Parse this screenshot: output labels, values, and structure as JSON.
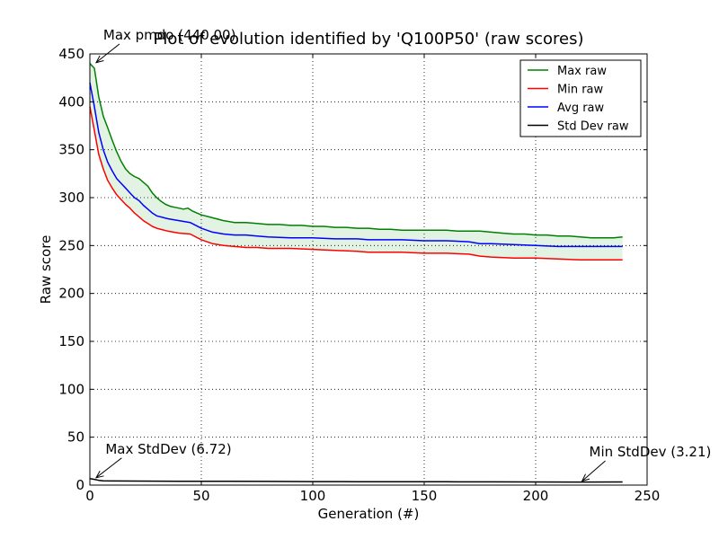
{
  "chart_data": {
    "type": "line",
    "title": "Plot of evolution identified by 'Q100P50' (raw scores)",
    "xlabel": "Generation (#)",
    "ylabel": "Raw score",
    "xlim": [
      0,
      250
    ],
    "ylim": [
      0,
      450
    ],
    "xticks": [
      0,
      50,
      100,
      150,
      200,
      250
    ],
    "yticks": [
      0,
      50,
      100,
      150,
      200,
      250,
      300,
      350,
      400,
      450
    ],
    "grid": true,
    "legend_position": "top-right",
    "fill_between": {
      "upper": "Max raw",
      "lower": "Min raw",
      "color": "#e3f3e3"
    },
    "series": [
      {
        "name": "Max raw",
        "color": "#008000",
        "x": [
          0,
          2,
          4,
          6,
          8,
          10,
          12,
          14,
          16,
          18,
          20,
          22,
          24,
          26,
          28,
          30,
          32,
          34,
          36,
          38,
          40,
          42,
          44,
          46,
          48,
          50,
          55,
          60,
          65,
          70,
          75,
          80,
          85,
          90,
          95,
          100,
          105,
          110,
          115,
          120,
          125,
          130,
          135,
          140,
          145,
          150,
          155,
          160,
          165,
          170,
          175,
          180,
          185,
          190,
          195,
          200,
          205,
          210,
          215,
          220,
          225,
          230,
          235,
          239
        ],
        "values": [
          440,
          435,
          405,
          385,
          373,
          360,
          348,
          338,
          330,
          325,
          322,
          320,
          316,
          312,
          305,
          300,
          296,
          293,
          291,
          290,
          289,
          288,
          289,
          286,
          284,
          282,
          279,
          276,
          274,
          274,
          273,
          272,
          272,
          271,
          271,
          270,
          270,
          269,
          269,
          268,
          268,
          267,
          267,
          266,
          266,
          266,
          266,
          266,
          265,
          265,
          265,
          264,
          263,
          262,
          262,
          261,
          261,
          260,
          260,
          259,
          258,
          258,
          258,
          259
        ]
      },
      {
        "name": "Min raw",
        "color": "#ff0000",
        "x": [
          0,
          2,
          4,
          6,
          8,
          10,
          12,
          14,
          16,
          18,
          20,
          22,
          24,
          26,
          28,
          30,
          35,
          40,
          45,
          50,
          55,
          60,
          65,
          70,
          75,
          80,
          90,
          100,
          110,
          120,
          125,
          130,
          140,
          150,
          160,
          170,
          175,
          180,
          190,
          200,
          210,
          220,
          230,
          239
        ],
        "values": [
          395,
          370,
          345,
          330,
          318,
          310,
          303,
          298,
          293,
          289,
          284,
          280,
          276,
          273,
          270,
          268,
          265,
          263,
          262,
          256,
          252,
          250,
          249,
          248,
          248,
          247,
          247,
          246,
          245,
          244,
          243,
          243,
          243,
          242,
          242,
          241,
          239,
          238,
          237,
          237,
          236,
          235,
          235,
          235
        ]
      },
      {
        "name": "Avg raw",
        "color": "#0000ff",
        "x": [
          0,
          2,
          4,
          6,
          8,
          10,
          12,
          14,
          16,
          18,
          20,
          22,
          24,
          26,
          28,
          30,
          35,
          40,
          45,
          50,
          55,
          60,
          65,
          70,
          75,
          80,
          90,
          100,
          110,
          120,
          125,
          130,
          140,
          150,
          160,
          170,
          175,
          180,
          190,
          200,
          210,
          220,
          230,
          239
        ],
        "values": [
          420,
          395,
          368,
          350,
          337,
          328,
          320,
          315,
          310,
          305,
          300,
          297,
          292,
          288,
          284,
          281,
          278,
          276,
          274,
          268,
          264,
          262,
          261,
          261,
          260,
          259,
          258,
          258,
          257,
          257,
          256,
          256,
          256,
          255,
          255,
          254,
          252,
          252,
          251,
          250,
          249,
          249,
          249,
          249
        ]
      },
      {
        "name": "Std Dev raw",
        "color": "#000000",
        "x": [
          0,
          2,
          4,
          6,
          10,
          20,
          40,
          60,
          80,
          100,
          120,
          140,
          160,
          180,
          200,
          220,
          239
        ],
        "values": [
          6.72,
          6.0,
          5.0,
          4.5,
          4.3,
          4.2,
          4.0,
          3.9,
          3.8,
          3.7,
          3.6,
          3.6,
          3.5,
          3.4,
          3.3,
          3.21,
          3.25
        ]
      }
    ],
    "annotations": [
      {
        "text": "Max pmdo (440.00)",
        "x": 2,
        "y": 440,
        "label_x": 6,
        "label_y": 465
      },
      {
        "text": "Max StdDev (6.72)",
        "x": 2,
        "y": 6.72,
        "label_x": 7,
        "label_y": 33
      },
      {
        "text": "Min StdDev (3.21)",
        "x": 220,
        "y": 3.21,
        "label_x": 224,
        "label_y": 30
      }
    ]
  }
}
